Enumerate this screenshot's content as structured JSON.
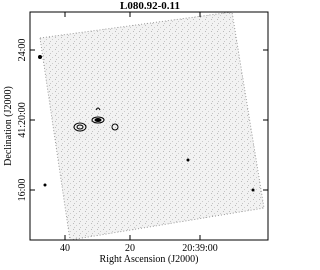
{
  "figure": {
    "title": "L080.92-0.11",
    "x_label": "Right Ascension (J2000)",
    "y_label": "Declination (J2000)",
    "x_tick_labels": [
      "40",
      "20",
      "20:39:00"
    ],
    "y_tick_labels": [
      "24:00",
      "41:20:00",
      "16:00"
    ]
  }
}
